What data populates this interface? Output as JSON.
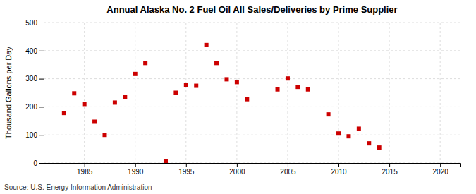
{
  "chart_data": {
    "type": "scatter",
    "title": "Annual Alaska No. 2 Fuel Oil All Sales/Deliveries by Prime Supplier",
    "ylabel": "Thousand Gallons per Day",
    "source": "Source: U.S. Energy Information Administration",
    "color": "#cc0000",
    "marker": "square",
    "grid": true,
    "xlim": [
      1981,
      2022
    ],
    "ylim": [
      0,
      500
    ],
    "xticks": [
      1985,
      1990,
      1995,
      2000,
      2005,
      2010,
      2015,
      2020
    ],
    "yticks": [
      0,
      100,
      200,
      300,
      400,
      500
    ],
    "x": [
      1983,
      1984,
      1985,
      1986,
      1987,
      1988,
      1989,
      1990,
      1991,
      1993,
      1994,
      1995,
      1996,
      1997,
      1998,
      1999,
      2000,
      2001,
      2004,
      2005,
      2006,
      2007,
      2009,
      2010,
      2011,
      2012,
      2013,
      2014
    ],
    "values": [
      178,
      248,
      210,
      147,
      100,
      215,
      236,
      317,
      356,
      5,
      250,
      278,
      275,
      420,
      356,
      298,
      288,
      227,
      262,
      301,
      271,
      262,
      173,
      105,
      95,
      122,
      70,
      55
    ]
  }
}
